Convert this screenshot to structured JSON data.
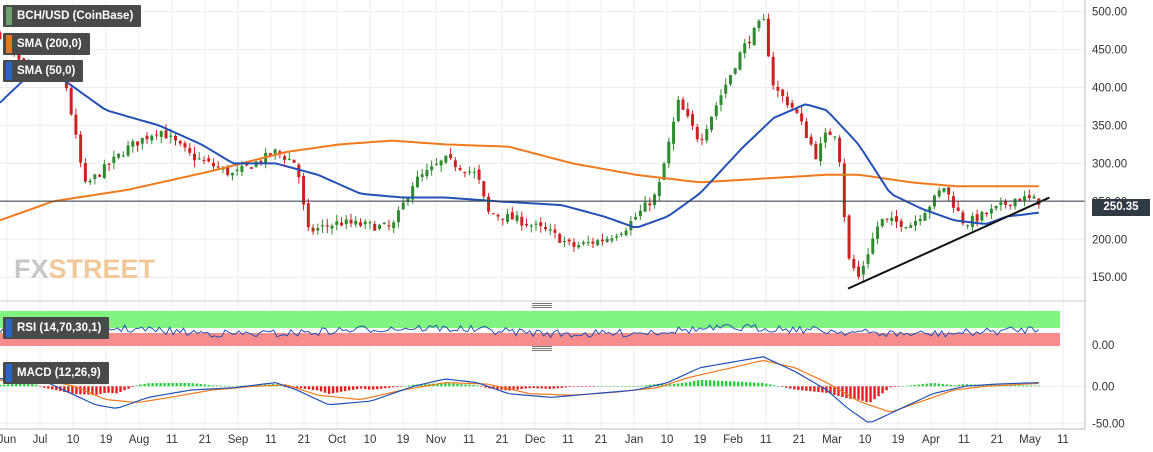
{
  "legend": {
    "pair_label": "BCH/USD (CoinBase)",
    "sma200_label": "SMA (200,0)",
    "sma50_label": "SMA (50,0)",
    "rsi_label": "RSI (14,70,30,1)",
    "macd_label": "MACD (12,26,9)"
  },
  "logo": {
    "part1": "FX",
    "part2": "STREET"
  },
  "colors": {
    "sma200": "#f07b1e",
    "sma50": "#2451b7",
    "trendline": "#111111",
    "candle_up": "#2e8b2e",
    "candle_down": "#cc2222",
    "rsi_overbought_zone": "#7ff47f",
    "rsi_oversold_zone": "#f78c8c",
    "rsi_line": "#2451b7",
    "macd_line": "#2451b7",
    "macd_signal": "#f07b1e",
    "hist_pos": "#2ecc40",
    "hist_neg": "#e02020",
    "sma200_swatch": "#e8761f",
    "sma50_swatch": "#2a66c5",
    "pair_swatch": "#6fa06f"
  },
  "chart_data": [
    {
      "type": "candlestick",
      "title": "BCH/USD (CoinBase)",
      "ylim": [
        120,
        510
      ],
      "y_ticks": [
        150,
        200,
        250,
        300,
        350,
        400,
        450,
        500
      ],
      "y_tick_labels": [
        "150.00",
        "200.00",
        "250.00",
        "300.00",
        "350.00",
        "400.00",
        "450.00",
        "500.00"
      ],
      "current_price": 250.35,
      "current_price_label": "250.35",
      "x_ticks": [
        "Jun",
        "Jul",
        "10",
        "19",
        "Aug",
        "11",
        "21",
        "Sep",
        "11",
        "21",
        "Oct",
        "10",
        "19",
        "Nov",
        "11",
        "21",
        "Dec",
        "11",
        "21",
        "Jan",
        "10",
        "19",
        "Feb",
        "11",
        "21",
        "Mar",
        "10",
        "19",
        "Apr",
        "11",
        "21",
        "May",
        "11"
      ],
      "close_keypoints": [
        [
          0,
          470
        ],
        [
          0.03,
          410
        ],
        [
          0.06,
          420
        ],
        [
          0.08,
          270
        ],
        [
          0.12,
          320
        ],
        [
          0.15,
          345
        ],
        [
          0.18,
          310
        ],
        [
          0.22,
          285
        ],
        [
          0.26,
          315
        ],
        [
          0.28,
          300
        ],
        [
          0.29,
          210
        ],
        [
          0.32,
          222
        ],
        [
          0.37,
          215
        ],
        [
          0.39,
          275
        ],
        [
          0.42,
          305
        ],
        [
          0.45,
          285
        ],
        [
          0.46,
          235
        ],
        [
          0.49,
          225
        ],
        [
          0.52,
          208
        ],
        [
          0.54,
          190
        ],
        [
          0.57,
          200
        ],
        [
          0.59,
          215
        ],
        [
          0.62,
          260
        ],
        [
          0.64,
          380
        ],
        [
          0.66,
          330
        ],
        [
          0.68,
          390
        ],
        [
          0.7,
          450
        ],
        [
          0.72,
          490
        ],
        [
          0.73,
          400
        ],
        [
          0.75,
          370
        ],
        [
          0.77,
          310
        ],
        [
          0.78,
          340
        ],
        [
          0.79,
          340
        ],
        [
          0.8,
          175
        ],
        [
          0.81,
          150
        ],
        [
          0.83,
          225
        ],
        [
          0.86,
          220
        ],
        [
          0.88,
          250
        ],
        [
          0.89,
          270
        ],
        [
          0.91,
          220
        ],
        [
          0.94,
          240
        ],
        [
          0.96,
          255
        ],
        [
          0.98,
          250.35
        ]
      ],
      "sma50_keypoints": [
        [
          0,
          380
        ],
        [
          0.03,
          420
        ],
        [
          0.06,
          410
        ],
        [
          0.1,
          370
        ],
        [
          0.15,
          350
        ],
        [
          0.19,
          325
        ],
        [
          0.22,
          300
        ],
        [
          0.26,
          300
        ],
        [
          0.3,
          285
        ],
        [
          0.34,
          260
        ],
        [
          0.38,
          255
        ],
        [
          0.42,
          255
        ],
        [
          0.47,
          250
        ],
        [
          0.53,
          245
        ],
        [
          0.57,
          230
        ],
        [
          0.6,
          215
        ],
        [
          0.63,
          230
        ],
        [
          0.66,
          260
        ],
        [
          0.7,
          320
        ],
        [
          0.73,
          360
        ],
        [
          0.76,
          378
        ],
        [
          0.78,
          370
        ],
        [
          0.81,
          325
        ],
        [
          0.84,
          260
        ],
        [
          0.87,
          240
        ],
        [
          0.9,
          225
        ],
        [
          0.93,
          220
        ],
        [
          0.95,
          230
        ],
        [
          0.98,
          235
        ]
      ],
      "sma200_keypoints": [
        [
          0,
          225
        ],
        [
          0.05,
          250
        ],
        [
          0.12,
          265
        ],
        [
          0.2,
          290
        ],
        [
          0.27,
          315
        ],
        [
          0.32,
          325
        ],
        [
          0.37,
          330
        ],
        [
          0.42,
          325
        ],
        [
          0.48,
          322
        ],
        [
          0.54,
          300
        ],
        [
          0.6,
          285
        ],
        [
          0.66,
          275
        ],
        [
          0.72,
          280
        ],
        [
          0.78,
          285
        ],
        [
          0.81,
          285
        ],
        [
          0.86,
          275
        ],
        [
          0.9,
          270
        ],
        [
          0.95,
          270
        ],
        [
          0.98,
          270
        ]
      ],
      "trendline": [
        [
          0.8,
          135
        ],
        [
          0.99,
          255
        ]
      ]
    },
    {
      "type": "line",
      "title": "RSI (14,70,30,1)",
      "y_tick_labels": [
        "0.00"
      ],
      "zones": [
        "overbought",
        "oversold"
      ]
    },
    {
      "type": "bar+line",
      "title": "MACD (12,26,9)",
      "ylim": [
        -55,
        45
      ],
      "y_ticks": [
        0,
        -50
      ],
      "y_tick_labels": [
        "0.00",
        "-50.00"
      ],
      "macd_keypoints": [
        [
          0,
          10
        ],
        [
          0.03,
          15
        ],
        [
          0.06,
          -5
        ],
        [
          0.09,
          -25
        ],
        [
          0.11,
          -30
        ],
        [
          0.14,
          -15
        ],
        [
          0.18,
          -5
        ],
        [
          0.22,
          -2
        ],
        [
          0.26,
          5
        ],
        [
          0.28,
          -5
        ],
        [
          0.31,
          -25
        ],
        [
          0.35,
          -20
        ],
        [
          0.39,
          0
        ],
        [
          0.42,
          10
        ],
        [
          0.45,
          5
        ],
        [
          0.48,
          -10
        ],
        [
          0.52,
          -15
        ],
        [
          0.56,
          -10
        ],
        [
          0.6,
          -5
        ],
        [
          0.63,
          5
        ],
        [
          0.66,
          25
        ],
        [
          0.7,
          35
        ],
        [
          0.72,
          40
        ],
        [
          0.75,
          20
        ],
        [
          0.78,
          -5
        ],
        [
          0.8,
          -30
        ],
        [
          0.82,
          -50
        ],
        [
          0.85,
          -30
        ],
        [
          0.88,
          -10
        ],
        [
          0.91,
          0
        ],
        [
          0.94,
          3
        ],
        [
          0.98,
          5
        ]
      ],
      "signal_keypoints": [
        [
          0,
          8
        ],
        [
          0.04,
          10
        ],
        [
          0.07,
          0
        ],
        [
          0.1,
          -18
        ],
        [
          0.13,
          -22
        ],
        [
          0.16,
          -15
        ],
        [
          0.2,
          -5
        ],
        [
          0.24,
          0
        ],
        [
          0.27,
          2
        ],
        [
          0.3,
          -12
        ],
        [
          0.34,
          -18
        ],
        [
          0.38,
          -5
        ],
        [
          0.42,
          5
        ],
        [
          0.46,
          3
        ],
        [
          0.5,
          -10
        ],
        [
          0.54,
          -12
        ],
        [
          0.58,
          -8
        ],
        [
          0.62,
          -2
        ],
        [
          0.65,
          12
        ],
        [
          0.69,
          25
        ],
        [
          0.72,
          35
        ],
        [
          0.75,
          25
        ],
        [
          0.78,
          5
        ],
        [
          0.81,
          -20
        ],
        [
          0.84,
          -35
        ],
        [
          0.87,
          -20
        ],
        [
          0.9,
          -5
        ],
        [
          0.93,
          0
        ],
        [
          0.98,
          4
        ]
      ]
    }
  ]
}
